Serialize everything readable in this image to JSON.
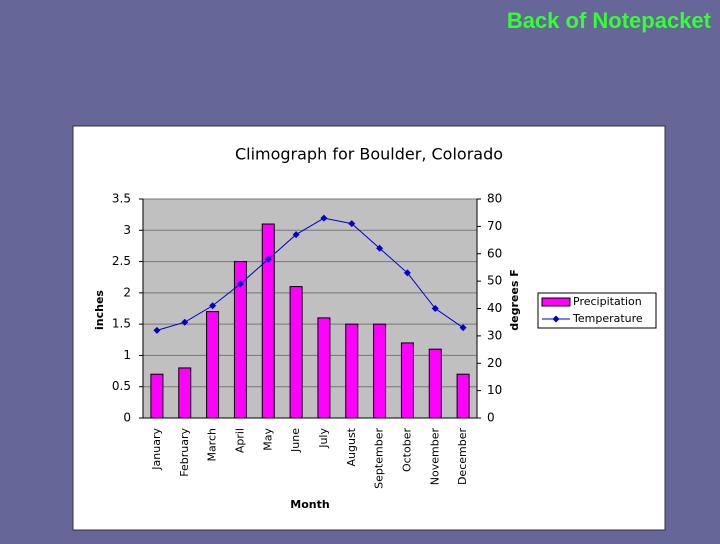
{
  "header": {
    "title": "Back of Notepacket"
  },
  "chart_data": {
    "type": "bar",
    "title": "Climograph for Boulder, Colorado",
    "x_label": "Month",
    "y_label": "inches",
    "y2_label": "degrees F",
    "categories": [
      "January",
      "February",
      "March",
      "April",
      "May",
      "June",
      "July",
      "August",
      "September",
      "October",
      "November",
      "December"
    ],
    "series": [
      {
        "name": "Precipitation",
        "type": "bar",
        "color": "#ff00ff",
        "values": [
          0.7,
          0.8,
          1.7,
          2.5,
          3.1,
          2.1,
          1.6,
          1.5,
          1.5,
          1.2,
          1.1,
          0.7
        ]
      },
      {
        "name": "Temperature",
        "type": "line",
        "axis": "y2",
        "color": "#0000cc",
        "values": [
          32,
          35,
          41,
          49,
          58,
          67,
          73,
          71,
          62,
          53,
          40,
          33
        ]
      }
    ],
    "ylim": [
      0,
      3.5
    ],
    "yticks": [
      0,
      0.5,
      1,
      1.5,
      2,
      2.5,
      3,
      3.5
    ],
    "y2lim": [
      0,
      80
    ],
    "y2ticks": [
      0,
      10,
      20,
      30,
      40,
      50,
      60,
      70,
      80
    ],
    "grid": true,
    "legend": "right"
  }
}
